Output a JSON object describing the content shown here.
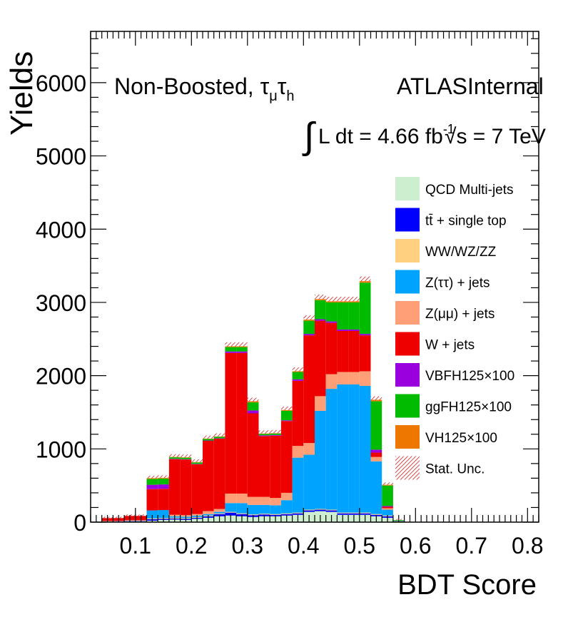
{
  "chart_data": {
    "type": "bar",
    "stacked": true,
    "xlabel": "BDT Score",
    "ylabel": "Yields",
    "xlim": [
      0.02,
      0.82
    ],
    "ylim": [
      0,
      6700
    ],
    "x_ticks": [
      "0.1",
      "0.2",
      "0.3",
      "0.4",
      "0.5",
      "0.6",
      "0.7",
      "0.8"
    ],
    "x_tick_values": [
      0.1,
      0.2,
      0.3,
      0.4,
      0.5,
      0.6,
      0.7,
      0.8
    ],
    "y_ticks": [
      "0",
      "1000",
      "2000",
      "3000",
      "4000",
      "5000",
      "6000"
    ],
    "y_tick_values": [
      0,
      1000,
      2000,
      3000,
      4000,
      5000,
      6000
    ],
    "annotations": {
      "channel": "Non-Boosted, τ",
      "channel_sub1": "μ",
      "channel_tau2": "τ",
      "channel_sub2": "h",
      "experiment": "ATLASInternal",
      "lumi_text": "L dt = 4.66 fb",
      "lumi_sup": "-1",
      "energy_text": "√s = 7 TeV"
    },
    "bin_edges": [
      0.04,
      0.06,
      0.08,
      0.1,
      0.12,
      0.14,
      0.16,
      0.18,
      0.2,
      0.22,
      0.24,
      0.26,
      0.28,
      0.3,
      0.32,
      0.34,
      0.36,
      0.38,
      0.4,
      0.42,
      0.44,
      0.46,
      0.48,
      0.5,
      0.52,
      0.54,
      0.56,
      0.58,
      0.6,
      0.62,
      0.64,
      0.66,
      0.68,
      0.7,
      0.72,
      0.74,
      0.76,
      0.78,
      0.8
    ],
    "series": [
      {
        "name": "QCD Multi-jets",
        "color": "#cdeecf",
        "values": [
          10,
          10,
          15,
          15,
          20,
          30,
          35,
          30,
          45,
          60,
          80,
          90,
          80,
          70,
          80,
          80,
          90,
          100,
          140,
          150,
          140,
          100,
          100,
          100,
          80,
          60,
          5,
          0,
          0,
          0,
          0,
          0,
          0,
          0,
          0,
          0,
          0,
          0
        ]
      },
      {
        "name": "tt̄ + single top",
        "color": "#0000ff",
        "values": [
          2,
          3,
          5,
          5,
          20,
          15,
          15,
          15,
          15,
          20,
          30,
          40,
          30,
          25,
          25,
          20,
          20,
          20,
          20,
          20,
          20,
          20,
          20,
          20,
          20,
          20,
          2,
          0,
          0,
          0,
          0,
          0,
          0,
          0,
          0,
          0,
          0,
          0
        ]
      },
      {
        "name": "WW/WZ/ZZ",
        "color": "#ffd080",
        "values": [
          3,
          3,
          5,
          5,
          10,
          10,
          10,
          10,
          10,
          10,
          10,
          10,
          10,
          10,
          10,
          10,
          10,
          10,
          10,
          10,
          10,
          10,
          10,
          10,
          10,
          10,
          2,
          0,
          0,
          0,
          0,
          0,
          0,
          0,
          0,
          0,
          0,
          0
        ]
      },
      {
        "name": "Z(ττ) + jets",
        "color": "#00a4ff",
        "values": [
          0,
          0,
          0,
          0,
          110,
          110,
          20,
          20,
          20,
          20,
          20,
          120,
          140,
          130,
          120,
          120,
          180,
          750,
          750,
          1340,
          1650,
          1750,
          1750,
          1730,
          720,
          80,
          5,
          0,
          0,
          0,
          0,
          0,
          0,
          0,
          0,
          0,
          0,
          0
        ]
      },
      {
        "name": "Z(μμ) + jets",
        "color": "#ff9f78",
        "values": [
          0,
          0,
          0,
          0,
          0,
          0,
          20,
          20,
          20,
          40,
          40,
          130,
          130,
          110,
          110,
          100,
          100,
          160,
          160,
          200,
          200,
          170,
          170,
          200,
          60,
          20,
          0,
          0,
          0,
          0,
          0,
          0,
          0,
          0,
          0,
          0,
          0,
          0
        ]
      },
      {
        "name": "W + jets",
        "color": "#ee0000",
        "values": [
          40,
          40,
          60,
          60,
          290,
          290,
          760,
          760,
          680,
          960,
          960,
          1920,
          1920,
          1140,
          830,
          850,
          980,
          890,
          1470,
          1030,
          700,
          560,
          560,
          490,
          60,
          20,
          3,
          0,
          0,
          0,
          0,
          0,
          0,
          0,
          0,
          0,
          0,
          0
        ]
      },
      {
        "name": "VBFH125×100",
        "color": "#9900dd",
        "values": [
          0,
          0,
          0,
          0,
          60,
          60,
          5,
          5,
          5,
          5,
          5,
          20,
          20,
          40,
          10,
          10,
          10,
          20,
          20,
          20,
          20,
          20,
          20,
          20,
          40,
          10,
          0,
          0,
          0,
          0,
          0,
          0,
          0,
          0,
          0,
          0,
          0,
          0
        ]
      },
      {
        "name": "ggFH125×100",
        "color": "#00bb00",
        "values": [
          0,
          0,
          0,
          0,
          80,
          80,
          20,
          20,
          20,
          20,
          20,
          60,
          60,
          110,
          20,
          20,
          130,
          100,
          180,
          260,
          260,
          370,
          370,
          700,
          660,
          280,
          10,
          0,
          0,
          0,
          0,
          0,
          0,
          0,
          0,
          0,
          0,
          0
        ]
      },
      {
        "name": "VH125×100",
        "color": "#ee7700",
        "values": [
          0,
          0,
          0,
          0,
          10,
          10,
          5,
          5,
          5,
          5,
          5,
          10,
          10,
          15,
          5,
          5,
          10,
          10,
          15,
          15,
          15,
          15,
          15,
          20,
          20,
          10,
          0,
          0,
          0,
          0,
          0,
          0,
          0,
          0,
          0,
          0,
          0,
          0
        ]
      }
    ],
    "legend": {
      "placement": "right-center",
      "entries": [
        "QCD Multi-jets",
        "tt̄ + single top",
        "WW/WZ/ZZ",
        "Z(ττ) + jets",
        "Z(μμ) + jets",
        "W + jets",
        "VBFH125×100",
        "ggFH125×100",
        "VH125×100",
        "Stat. Unc."
      ]
    },
    "stat_unc_label": "Stat. Unc."
  }
}
